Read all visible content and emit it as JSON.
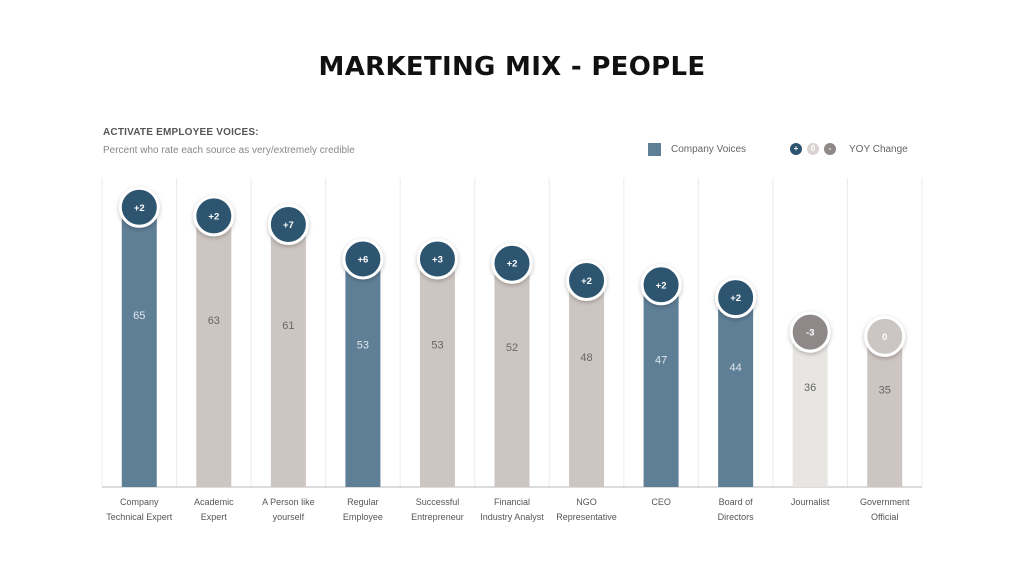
{
  "header": {
    "title": "MARKETING MIX - PEOPLE",
    "subtitle": "ACTIVATE EMPLOYEE VOICES:",
    "description": "Percent who rate each source as very/extremely credible"
  },
  "legend": {
    "company_label": "Company Voices",
    "yoy_symbols": [
      "+",
      "0",
      "-"
    ],
    "yoy_label": "YOY Change"
  },
  "colors": {
    "company": "#5f7f97",
    "other": "#cdc5c1",
    "journalist": "#e8e6e3",
    "badge_positive": "#2d5470",
    "badge_negative": "#8f8888",
    "badge_zero": "#cbc6c3"
  },
  "chart_data": {
    "type": "bar",
    "categories": [
      [
        "Company",
        "Technical Expert"
      ],
      [
        "Academic",
        "Expert"
      ],
      [
        "A Person like",
        "yourself"
      ],
      [
        "Regular",
        "Employee"
      ],
      [
        "Successful",
        "Entrepreneur"
      ],
      [
        "Financial",
        "Industry Analyst"
      ],
      [
        "NGO",
        "Representative"
      ],
      [
        "CEO"
      ],
      [
        "Board of",
        "Directors"
      ],
      [
        "Journalist"
      ],
      [
        "Government",
        "Official"
      ]
    ],
    "values": [
      65,
      63,
      61,
      53,
      53,
      52,
      48,
      47,
      44,
      36,
      35
    ],
    "yoy_change": [
      "+2",
      "+2",
      "+7",
      "+6",
      "+3",
      "+2",
      "+2",
      "+2",
      "+2",
      "-3",
      "0"
    ],
    "company_voice": [
      true,
      false,
      false,
      true,
      false,
      false,
      false,
      true,
      true,
      false,
      false
    ],
    "ylim": [
      0,
      66
    ],
    "grid": "vertical separators"
  }
}
